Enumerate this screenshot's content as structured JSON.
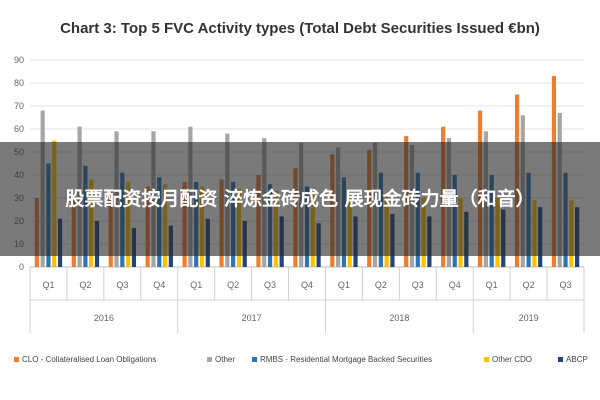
{
  "chart_data": {
    "type": "bar",
    "title": "Chart 3: Top 5 FVC Activity types (Total Debt Securities Issued €bn)",
    "xlabel": "",
    "ylabel": "",
    "ylim": [
      0,
      90
    ],
    "yticks": [
      0,
      10,
      20,
      30,
      40,
      50,
      60,
      70,
      80,
      90
    ],
    "grid": true,
    "legend_position": "bottom",
    "categories": [
      "Q1",
      "Q2",
      "Q3",
      "Q4",
      "Q1",
      "Q2",
      "Q3",
      "Q4",
      "Q1",
      "Q2",
      "Q3",
      "Q4",
      "Q1",
      "Q2",
      "Q3"
    ],
    "groups": [
      {
        "label": "2016",
        "count": 4
      },
      {
        "label": "2017",
        "count": 4
      },
      {
        "label": "2018",
        "count": 4
      },
      {
        "label": "2019",
        "count": 3
      }
    ],
    "series": [
      {
        "name": "CLO - Collateralised Loan Obligations",
        "color": "#ed7d31",
        "values": [
          30,
          32,
          33,
          35,
          37,
          38,
          40,
          43,
          49,
          51,
          57,
          61,
          68,
          75,
          83
        ]
      },
      {
        "name": "Other",
        "color": "#a5a5a5",
        "values": [
          68,
          61,
          59,
          59,
          61,
          58,
          56,
          54,
          52,
          54,
          53,
          56,
          59,
          66,
          67
        ]
      },
      {
        "name": "RMBS - Residential Mortgage Backed Securities",
        "color": "#2e75b6",
        "values": [
          45,
          44,
          41,
          39,
          37,
          37,
          36,
          35,
          39,
          41,
          41,
          40,
          40,
          41,
          41
        ]
      },
      {
        "name": "Other CDO",
        "color": "#ffc000",
        "values": [
          55,
          38,
          37,
          36,
          35,
          34,
          33,
          32,
          31,
          31,
          30,
          30,
          30,
          29,
          29
        ]
      },
      {
        "name": "ABCP",
        "color": "#264478",
        "values": [
          21,
          20,
          17,
          18,
          21,
          20,
          22,
          19,
          22,
          23,
          22,
          24,
          25,
          26,
          26
        ]
      }
    ]
  },
  "overlay": {
    "text": "股票配资按月配资 淬炼金砖成色  展现金砖力量（和音）"
  }
}
